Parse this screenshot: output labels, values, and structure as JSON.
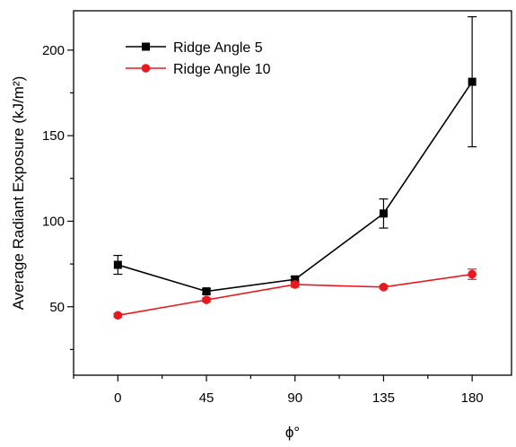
{
  "chart_data": {
    "type": "line",
    "title": "",
    "xlabel": "ϕ°",
    "ylabel": "Average Radiant Exposure (kJ/m²)",
    "x": [
      0,
      45,
      90,
      135,
      180
    ],
    "xticks": [
      "0",
      "45",
      "90",
      "135",
      "180"
    ],
    "xlim": [
      -22.5,
      200
    ],
    "ylim": [
      10,
      223
    ],
    "yticks": [
      50,
      100,
      150,
      200
    ],
    "ytick_labels": [
      "50",
      "100",
      "150",
      "200"
    ],
    "grid": false,
    "legend_position": "top-left",
    "series": [
      {
        "name": "Ridge Angle 5",
        "color": "#000000",
        "marker": "square",
        "values": [
          74.5,
          59,
          66,
          104.5,
          181.5
        ],
        "errors": [
          5.5,
          1.5,
          1.5,
          8.5,
          38
        ]
      },
      {
        "name": "Ridge Angle 10",
        "color": "#e8191e",
        "marker": "circle",
        "values": [
          45,
          54,
          63,
          61.5,
          69
        ],
        "errors": [
          1,
          1,
          1.5,
          1,
          3
        ]
      }
    ]
  }
}
